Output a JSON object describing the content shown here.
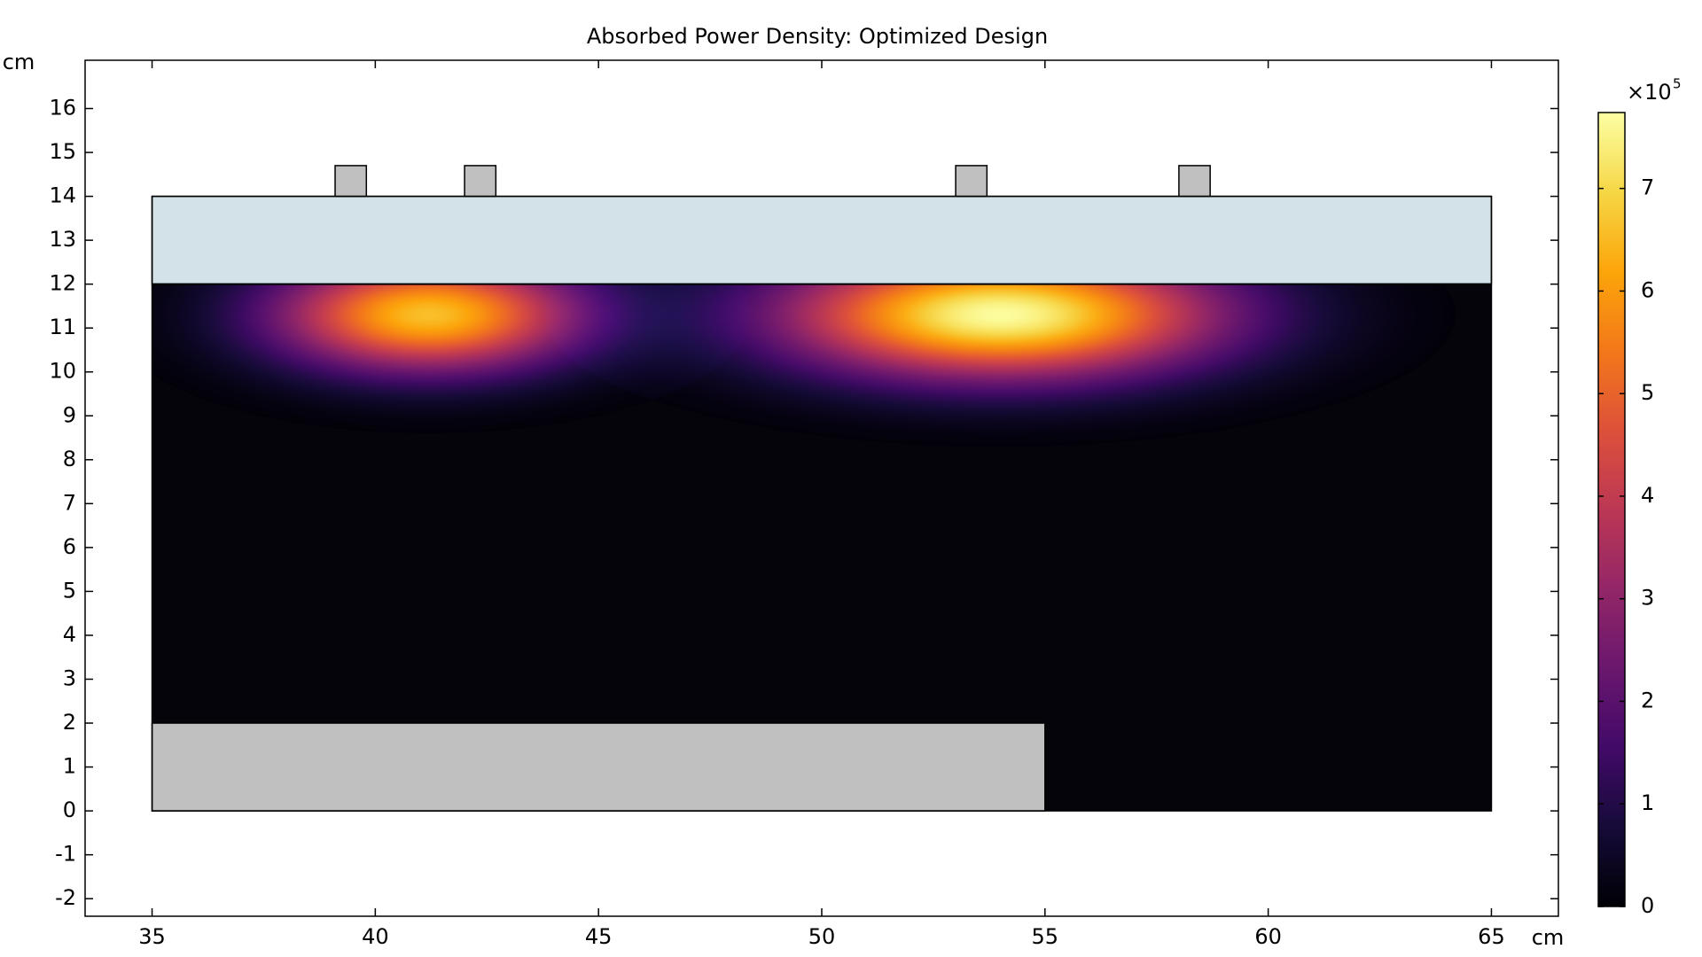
{
  "chart_data": {
    "type": "field",
    "title": "Absorbed Power Density: Optimized Design",
    "xlabel": "cm",
    "ylabel": "cm",
    "xlim": [
      33.5,
      66.5
    ],
    "ylim": [
      -2.4,
      17.1
    ],
    "xticks": [
      35,
      40,
      45,
      50,
      55,
      60,
      65
    ],
    "yticks": [
      -2,
      -1,
      0,
      1,
      2,
      3,
      4,
      5,
      6,
      7,
      8,
      9,
      10,
      11,
      12,
      13,
      14,
      15,
      16
    ],
    "domain": {
      "x": [
        35,
        65
      ],
      "y": [
        0,
        12
      ],
      "color": "#05040b"
    },
    "outline": {
      "x": [
        35,
        65
      ],
      "y": [
        0,
        14
      ]
    },
    "regions": [
      {
        "x": [
          35,
          65
        ],
        "y": [
          12,
          14
        ],
        "color": "#d3e2e9"
      },
      {
        "x": [
          35,
          55
        ],
        "y": [
          0,
          2
        ],
        "color": "#c0c0c0"
      },
      {
        "x": [
          39.1,
          39.8
        ],
        "y": [
          14,
          14.7
        ],
        "color": "#c0c0c0"
      },
      {
        "x": [
          42,
          42.7
        ],
        "y": [
          14,
          14.7
        ],
        "color": "#c0c0c0"
      },
      {
        "x": [
          53,
          53.7
        ],
        "y": [
          14,
          14.7
        ],
        "color": "#c0c0c0"
      },
      {
        "x": [
          58,
          58.7
        ],
        "y": [
          14,
          14.7
        ],
        "color": "#c0c0c0"
      }
    ],
    "hotspots": [
      {
        "x": 41.2,
        "y": 11.3,
        "peak": 6.6,
        "spread_x": 2.4,
        "spread_y": 0.9
      },
      {
        "x": 54.0,
        "y": 11.3,
        "peak": 7.7,
        "spread_x": 3.4,
        "spread_y": 1.0
      }
    ],
    "colorbar": {
      "colormap": "inferno",
      "clim": [
        0,
        7.74
      ],
      "ticks": [
        0,
        1,
        2,
        3,
        4,
        5,
        6,
        7
      ],
      "multiplier_base": "×10",
      "multiplier_exp": "5"
    }
  }
}
